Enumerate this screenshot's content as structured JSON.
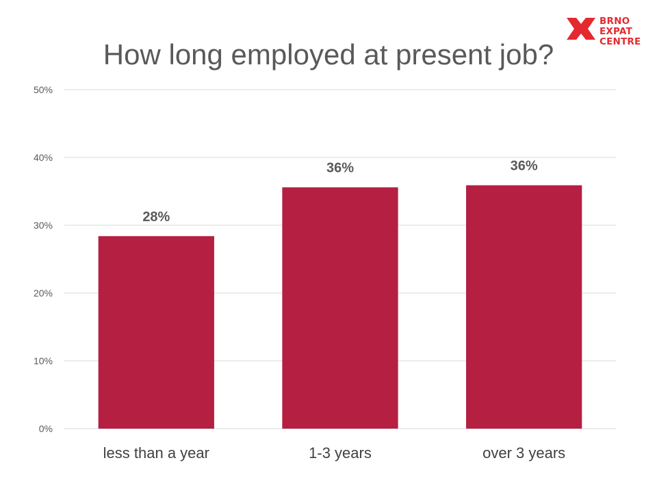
{
  "slide": {
    "title": "How long employed at present job?"
  },
  "logo": {
    "lines": [
      "BRNO",
      "EXPAT",
      "CENTRE"
    ],
    "color": "#e42a2f"
  },
  "chart_data": {
    "type": "bar",
    "title": "How long employed at present job?",
    "categories": [
      "less than a year",
      "1-3 years",
      "over 3 years"
    ],
    "values": [
      28.4,
      35.6,
      35.9
    ],
    "data_labels": [
      "28%",
      "36%",
      "36%"
    ],
    "ylim": [
      0,
      50
    ],
    "yticks": [
      0,
      10,
      20,
      30,
      40,
      50
    ],
    "ytick_labels": [
      "0%",
      "10%",
      "20%",
      "30%",
      "40%",
      "50%"
    ],
    "xlabel": "",
    "ylabel": "",
    "grid": true,
    "bar_color": "#b51f42",
    "gridline_color": "#d9d9d9"
  }
}
